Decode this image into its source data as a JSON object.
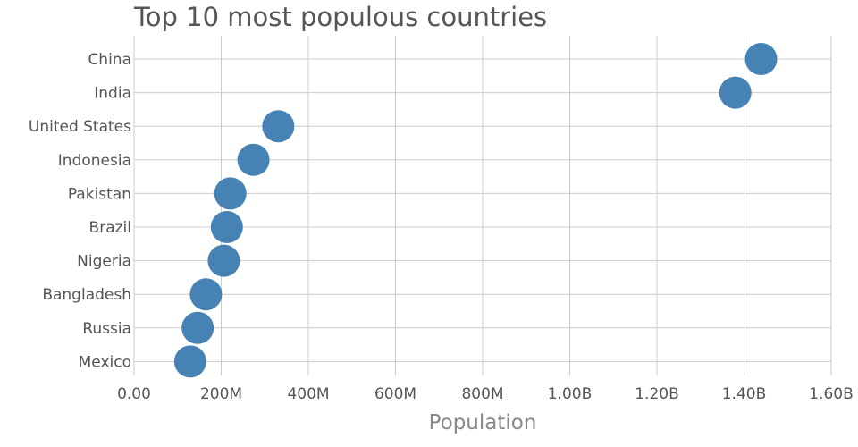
{
  "chart_data": {
    "type": "scatter",
    "title": "Top 10 most populous countries",
    "xlabel": "Population",
    "ylabel": "",
    "categories": [
      "China",
      "India",
      "United States",
      "Indonesia",
      "Pakistan",
      "Brazil",
      "Nigeria",
      "Bangladesh",
      "Russia",
      "Mexico"
    ],
    "values": [
      1439000000,
      1380000000,
      331000000,
      274000000,
      221000000,
      213000000,
      206000000,
      165000000,
      146000000,
      129000000
    ],
    "xlim": [
      0,
      1600000000
    ],
    "x_ticks": [
      0,
      200000000,
      400000000,
      600000000,
      800000000,
      1000000000,
      1200000000,
      1400000000,
      1600000000
    ],
    "x_tick_labels": [
      "0.00",
      "200M",
      "400M",
      "600M",
      "800M",
      "1.00B",
      "1.20B",
      "1.40B",
      "1.60B"
    ],
    "grid": true,
    "legend": "none",
    "marker_color": "#4682b4"
  }
}
